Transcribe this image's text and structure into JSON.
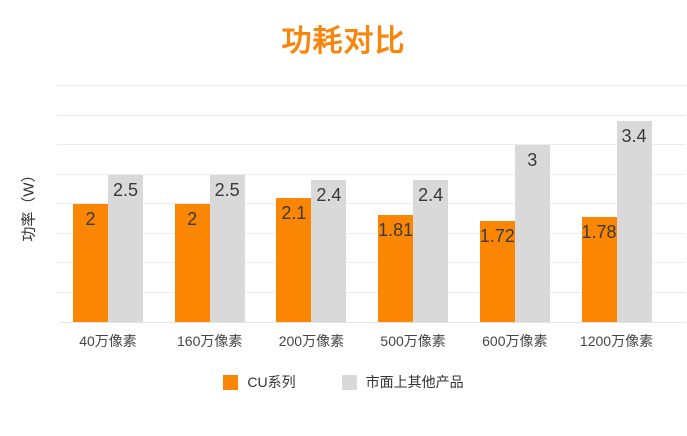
{
  "chart_data": {
    "type": "bar",
    "title": "功耗对比",
    "ylabel": "功率（W）",
    "xlabel": "",
    "categories": [
      "40万像素",
      "160万像素",
      "200万像素",
      "500万像素",
      "600万像素",
      "1200万像素"
    ],
    "series": [
      {
        "name": "CU系列",
        "color": "#FB8604",
        "values": [
          2,
          2,
          2.1,
          1.81,
          1.72,
          1.78
        ]
      },
      {
        "name": "市面上其他产品",
        "color": "#D9D9D9",
        "values": [
          2.5,
          2.5,
          2.4,
          2.4,
          3,
          3.4
        ]
      }
    ],
    "ylim": [
      0,
      4
    ],
    "grid": true,
    "gridline_step": 0.5,
    "y_tick_labels_shown": false,
    "value_labels": "inside-top",
    "legend_position": "bottom"
  },
  "colors": {
    "title": "#F8860D",
    "series_cu": "#FB8604",
    "series_other": "#D9D9D9",
    "gridline": "#ededed",
    "axis_baseline": "#e3e3e3",
    "value_label": "#3a3a3a",
    "axis_label": "#454545",
    "legend_text": "#333333",
    "background": "#ffffff"
  }
}
